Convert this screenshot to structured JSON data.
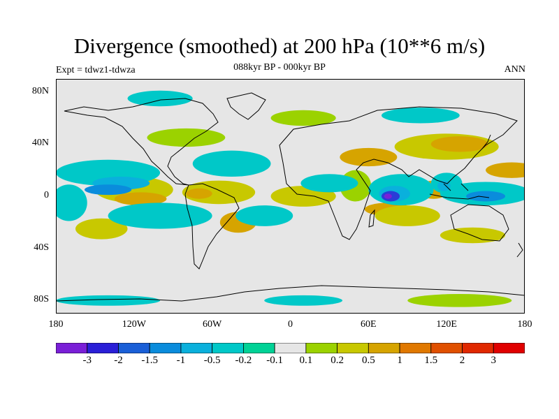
{
  "title": "Divergence (smoothed) at 200 hPa (10**6 m/s)",
  "subtitle": "088kyr BP - 000kyr BP",
  "left_title": "Expt = tdwz1-tdwza",
  "right_title": "ANN",
  "map": {
    "projection": "cylindrical equidistant",
    "lon_range": [
      -180,
      180
    ],
    "lat_range": [
      -90,
      90
    ],
    "lat_labels": [
      {
        "value": 80,
        "label": "80N"
      },
      {
        "value": 40,
        "label": "40N"
      },
      {
        "value": 0,
        "label": "0"
      },
      {
        "value": -40,
        "label": "40S"
      },
      {
        "value": -80,
        "label": "80S"
      }
    ],
    "lon_labels": [
      {
        "value": -180,
        "label": "180"
      },
      {
        "value": -120,
        "label": "120W"
      },
      {
        "value": -60,
        "label": "60W"
      },
      {
        "value": 0,
        "label": "0"
      },
      {
        "value": 60,
        "label": "60E"
      },
      {
        "value": 120,
        "label": "120E"
      },
      {
        "value": 180,
        "label": "180"
      }
    ],
    "background_color": "#e6e6e6",
    "features": [
      {
        "type": "divergence",
        "color": "#c8c800",
        "lon": -120,
        "lat": 5,
        "r": [
          30,
          10
        ]
      },
      {
        "type": "divergence",
        "color": "#d6a400",
        "lon": -115,
        "lat": -2,
        "r": [
          20,
          5
        ]
      },
      {
        "type": "divergence",
        "color": "#c8c800",
        "lon": -55,
        "lat": 3,
        "r": [
          28,
          9
        ]
      },
      {
        "type": "divergence",
        "color": "#d6a400",
        "lon": -70,
        "lat": 2,
        "r": [
          10,
          4
        ]
      },
      {
        "type": "divergence",
        "color": "#c8c800",
        "lon": 10,
        "lat": 0,
        "r": [
          25,
          8
        ]
      },
      {
        "type": "divergence",
        "color": "#c8c800",
        "lon": -145,
        "lat": -25,
        "r": [
          20,
          8
        ]
      },
      {
        "type": "divergence",
        "color": "#d6a400",
        "lon": -40,
        "lat": -20,
        "r": [
          14,
          8
        ]
      },
      {
        "type": "divergence",
        "color": "#d6a400",
        "lon": 75,
        "lat": -10,
        "r": [
          18,
          5
        ]
      },
      {
        "type": "divergence",
        "color": "#c8c800",
        "lon": 90,
        "lat": -15,
        "r": [
          25,
          8
        ]
      },
      {
        "type": "divergence",
        "color": "#d6a400",
        "lon": 60,
        "lat": 30,
        "r": [
          22,
          7
        ]
      },
      {
        "type": "divergence",
        "color": "#c8c800",
        "lon": 120,
        "lat": 38,
        "r": [
          40,
          10
        ]
      },
      {
        "type": "divergence",
        "color": "#d6a400",
        "lon": 130,
        "lat": 40,
        "r": [
          22,
          6
        ]
      },
      {
        "type": "divergence",
        "color": "#d6a400",
        "lon": 110,
        "lat": 5,
        "r": [
          12,
          7
        ]
      },
      {
        "type": "divergence",
        "color": "#d6a400",
        "lon": 170,
        "lat": 20,
        "r": [
          20,
          6
        ]
      },
      {
        "type": "divergence",
        "color": "#c8c800",
        "lon": 140,
        "lat": -30,
        "r": [
          25,
          6
        ]
      },
      {
        "type": "divergence",
        "color": "#9bd200",
        "lon": -80,
        "lat": 45,
        "r": [
          30,
          7
        ]
      },
      {
        "type": "divergence",
        "color": "#9bd200",
        "lon": 50,
        "lat": 8,
        "r": [
          12,
          12
        ]
      },
      {
        "type": "divergence",
        "color": "#9bd200",
        "lon": 10,
        "lat": 60,
        "r": [
          25,
          6
        ]
      },
      {
        "type": "divergence",
        "color": "#9bd200",
        "lon": 130,
        "lat": -80,
        "r": [
          40,
          5
        ]
      },
      {
        "type": "convergence",
        "color": "#00c8c8",
        "lon": -140,
        "lat": 18,
        "r": [
          40,
          10
        ]
      },
      {
        "type": "convergence",
        "color": "#0ab0dc",
        "lon": -130,
        "lat": 10,
        "r": [
          22,
          5
        ]
      },
      {
        "type": "convergence",
        "color": "#00c8c8",
        "lon": -45,
        "lat": 25,
        "r": [
          30,
          10
        ]
      },
      {
        "type": "convergence",
        "color": "#0a8cdc",
        "lon": -140,
        "lat": 5,
        "r": [
          18,
          4
        ]
      },
      {
        "type": "convergence",
        "color": "#00c8c8",
        "lon": 30,
        "lat": 10,
        "r": [
          22,
          7
        ]
      },
      {
        "type": "convergence",
        "color": "#00c8c8",
        "lon": 85,
        "lat": 5,
        "r": [
          25,
          12
        ]
      },
      {
        "type": "convergence",
        "color": "#0ab0dc",
        "lon": 80,
        "lat": 2,
        "r": [
          12,
          6
        ]
      },
      {
        "type": "convergence",
        "color": "#2a3cd7",
        "lon": 77,
        "lat": 0,
        "r": [
          7,
          4
        ]
      },
      {
        "type": "convergence",
        "color": "#7a1fd7",
        "lon": 75,
        "lat": 0,
        "r": [
          3,
          2
        ]
      },
      {
        "type": "convergence",
        "color": "#00c8c8",
        "lon": 150,
        "lat": 2,
        "r": [
          35,
          9
        ]
      },
      {
        "type": "convergence",
        "color": "#0a8cdc",
        "lon": 150,
        "lat": 0,
        "r": [
          15,
          4
        ]
      },
      {
        "type": "convergence",
        "color": "#00c8c8",
        "lon": -170,
        "lat": -5,
        "r": [
          14,
          14
        ]
      },
      {
        "type": "convergence",
        "color": "#00c8c8",
        "lon": -100,
        "lat": -15,
        "r": [
          40,
          10
        ]
      },
      {
        "type": "convergence",
        "color": "#00c8c8",
        "lon": -20,
        "lat": -15,
        "r": [
          22,
          8
        ]
      },
      {
        "type": "convergence",
        "color": "#00c8c8",
        "lon": -100,
        "lat": 75,
        "r": [
          25,
          6
        ]
      },
      {
        "type": "convergence",
        "color": "#00c8c8",
        "lon": 100,
        "lat": 62,
        "r": [
          30,
          6
        ]
      },
      {
        "type": "convergence",
        "color": "#00c8c8",
        "lon": -140,
        "lat": -80,
        "r": [
          40,
          4
        ]
      },
      {
        "type": "convergence",
        "color": "#00c8c8",
        "lon": 10,
        "lat": -80,
        "r": [
          30,
          4
        ]
      },
      {
        "type": "convergence",
        "color": "#00c8c8",
        "lon": 120,
        "lat": 10,
        "r": [
          12,
          8
        ]
      },
      {
        "type": "convergence",
        "color": "#0ab0dc",
        "lon": 118,
        "lat": 8,
        "r": [
          5,
          4
        ]
      }
    ]
  },
  "colorbar": {
    "labels": [
      "-3",
      "-2",
      "-1.5",
      "-1",
      "-0.5",
      "-0.2",
      "-0.1",
      "0.1",
      "0.2",
      "0.5",
      "1",
      "1.5",
      "2",
      "3"
    ],
    "colors": [
      "#7a1fd7",
      "#2a1fd7",
      "#1a5fd7",
      "#0a8cdc",
      "#0ab0dc",
      "#00c8c8",
      "#00d296",
      "#e6e6e6",
      "#9bd200",
      "#c8c800",
      "#d6a400",
      "#e07800",
      "#e05000",
      "#e02800",
      "#e00000"
    ]
  }
}
